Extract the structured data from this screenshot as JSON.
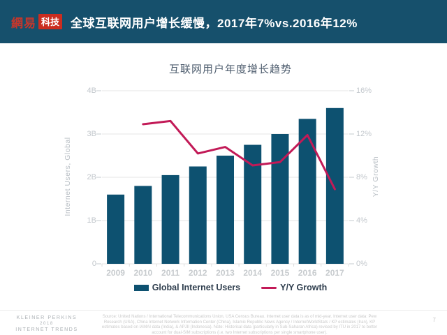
{
  "header": {
    "logo_brand": "網易",
    "logo_sub": "科技",
    "title": "全球互联网用户增长缓慢，2017年7%vs.2016年12%"
  },
  "chart_data": {
    "type": "bar",
    "title": "互联网用户年度增长趋势",
    "categories": [
      "2009",
      "2010",
      "2011",
      "2012",
      "2013",
      "2014",
      "2015",
      "2016",
      "2017"
    ],
    "series": [
      {
        "name": "Global Internet Users",
        "type": "bar",
        "axis": "left",
        "unit": "B",
        "color": "#0d5170",
        "values": [
          1.6,
          1.8,
          2.05,
          2.25,
          2.5,
          2.75,
          3.0,
          3.35,
          3.6
        ]
      },
      {
        "name": "Y/Y Growth",
        "type": "line",
        "axis": "right",
        "unit": "%",
        "color": "#c21a57",
        "values": [
          null,
          12.9,
          13.2,
          10.2,
          10.8,
          9.1,
          9.4,
          11.9,
          6.9
        ]
      }
    ],
    "left_axis": {
      "label": "Internet Users, Global",
      "range": [
        0,
        4
      ],
      "ticks": [
        "0",
        "1B",
        "2B",
        "3B",
        "4B"
      ]
    },
    "right_axis": {
      "label": "Y/Y Growth",
      "range": [
        0,
        16
      ],
      "ticks": [
        "0%",
        "4%",
        "8%",
        "12%",
        "16%"
      ]
    },
    "grid": true,
    "legend_position": "bottom",
    "legend": [
      {
        "label": "Global Internet Users",
        "swatch": "bar"
      },
      {
        "label": "Y/Y Growth",
        "swatch": "line"
      }
    ]
  },
  "footer": {
    "brand_lines": [
      "KLEINER PERKINS",
      "2018",
      "INTERNET TRENDS"
    ],
    "source_text": "Source: United Nations / International Telecommunications Union, USA Census Bureau. Internet user data is as of mid-year. Internet user data: Pew Research (USA), China Internet Network Information Center (China), Islamic Republic News Agency / InternetWorldStats / KP estimates (Iran), KP estimates based on IAMAI data (India), & APJII (Indonesia).  Note: Historical data (particularly in Sub-Saharan Africa) revised by ITU in 2017 to better account for dual-SIM subscriptions (i.e. two Internet subscriptions per single smartphone user).",
    "page_number": "7"
  },
  "colors": {
    "header_bg": "#16506c",
    "logo_red": "#cb2d20",
    "bar_blue": "#0d5170",
    "line_crimson": "#c21a57",
    "grid_gray": "#e4e4e4",
    "tick_label_gray": "#c2c7cc",
    "chart_title_slate": "#4e5d6e",
    "legend_text": "#2f3e4e"
  }
}
